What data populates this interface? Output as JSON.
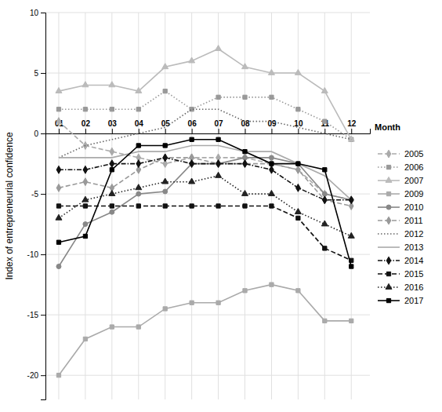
{
  "chart_data": {
    "type": "line",
    "x_label": "Month",
    "y_label": "Index of entrepreneurial confidence",
    "x": [
      1,
      2,
      3,
      4,
      5,
      6,
      7,
      8,
      9,
      10,
      11,
      12
    ],
    "xlim": [
      0.5,
      12.7
    ],
    "xticks": [
      {
        "value": 1,
        "label": "01"
      },
      {
        "value": 2,
        "label": "02"
      },
      {
        "value": 3,
        "label": "03"
      },
      {
        "value": 4,
        "label": "04"
      },
      {
        "value": 5,
        "label": "05"
      },
      {
        "value": 6,
        "label": "06"
      },
      {
        "value": 7,
        "label": "07"
      },
      {
        "value": 8,
        "label": "08"
      },
      {
        "value": 9,
        "label": "09"
      },
      {
        "value": 10,
        "label": "10"
      },
      {
        "value": 11,
        "label": "11"
      },
      {
        "value": 12,
        "label": "12"
      }
    ],
    "ylim": [
      -22,
      10
    ],
    "yticks": [
      -20,
      -15,
      -10,
      -5,
      0,
      5,
      10
    ],
    "grid": true,
    "legend": "right",
    "series": [
      {
        "name": "2005",
        "color": "#aaaaaa",
        "line_style": "dashed",
        "marker": "diamond",
        "values": [
          1.0,
          -1.0,
          -1.5,
          -2.0,
          -2.5,
          -2.0,
          -2.0,
          -2.0,
          -2.5,
          -3.0,
          -5.0,
          -5.5
        ]
      },
      {
        "name": "2006",
        "color": "#999999",
        "line_style": "dotted",
        "marker": "square",
        "values": [
          2.0,
          2.0,
          2.0,
          2.0,
          3.5,
          2.0,
          3.0,
          3.0,
          3.0,
          2.0,
          1.0,
          -0.5
        ]
      },
      {
        "name": "2007",
        "color": "#bbbbbb",
        "line_style": "solid",
        "marker": "triangle",
        "values": [
          3.5,
          4.0,
          4.0,
          3.5,
          5.5,
          6.0,
          7.0,
          5.5,
          5.0,
          5.0,
          3.5,
          -0.5
        ]
      },
      {
        "name": "2009",
        "color": "#aaaaaa",
        "line_style": "solid",
        "marker": "square",
        "values": [
          -20.0,
          -17.0,
          -16.0,
          -16.0,
          -14.5,
          -14.0,
          -14.0,
          -13.0,
          -12.5,
          -13.0,
          -15.5,
          -15.5
        ]
      },
      {
        "name": "2010",
        "color": "#888888",
        "line_style": "solid",
        "marker": "circle",
        "values": [
          -11.0,
          -7.5,
          -6.5,
          -5.0,
          -4.8,
          -2.5,
          -2.5,
          -2.0,
          -2.0,
          -2.5,
          -5.0,
          -5.5
        ]
      },
      {
        "name": "2011",
        "color": "#999999",
        "line_style": "dashed",
        "marker": "diamond",
        "values": [
          -4.5,
          -4.0,
          -4.5,
          -3.0,
          -2.0,
          -2.0,
          -2.5,
          -2.5,
          -2.5,
          -3.0,
          -5.5,
          -6.0
        ]
      },
      {
        "name": "2012",
        "color": "#666666",
        "line_style": "dotted",
        "marker": "none",
        "values": [
          -2.0,
          -1.0,
          -0.5,
          0.0,
          0.5,
          2.0,
          2.0,
          1.0,
          1.0,
          0.5,
          0.0,
          -0.5
        ]
      },
      {
        "name": "2013",
        "color": "#aaaaaa",
        "line_style": "solid",
        "marker": "none",
        "values": [
          -2.0,
          -2.0,
          -2.0,
          -1.5,
          -1.5,
          -1.0,
          -1.0,
          -1.5,
          -1.5,
          -2.5,
          -3.5,
          -5.5
        ]
      },
      {
        "name": "2014",
        "color": "#111111",
        "line_style": "dashdot",
        "marker": "diamond",
        "values": [
          -3.0,
          -3.0,
          -2.5,
          -2.5,
          -2.0,
          -2.5,
          -2.5,
          -2.5,
          -3.0,
          -4.5,
          -5.5,
          -5.5
        ]
      },
      {
        "name": "2015",
        "color": "#111111",
        "line_style": "dashed",
        "marker": "square",
        "values": [
          -6.0,
          -6.0,
          -6.0,
          -6.0,
          -6.0,
          -6.0,
          -6.0,
          -6.0,
          -6.0,
          -7.0,
          -9.5,
          -10.5
        ]
      },
      {
        "name": "2016",
        "color": "#222222",
        "line_style": "dotted",
        "marker": "triangle",
        "values": [
          -7.0,
          -5.5,
          -5.0,
          -4.5,
          -4.0,
          -4.0,
          -3.5,
          -5.0,
          -5.0,
          -6.5,
          -7.5,
          -8.5
        ]
      },
      {
        "name": "2017",
        "color": "#000000",
        "line_style": "solid",
        "marker": "square",
        "values": [
          -9.0,
          -8.5,
          -3.0,
          -1.0,
          -1.0,
          -0.5,
          -0.5,
          -1.5,
          -2.5,
          -2.5,
          -3.0,
          -11.0
        ]
      }
    ]
  }
}
